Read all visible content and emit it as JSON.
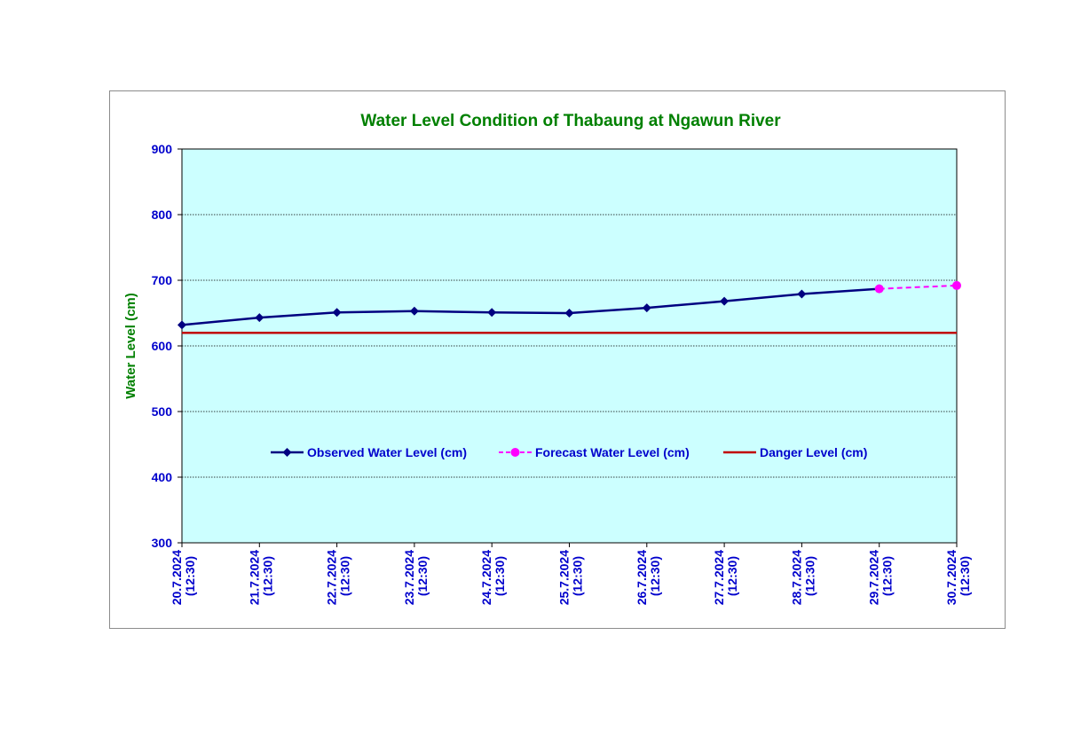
{
  "colors": {
    "plot_bg": "#ccffff",
    "observed": "#000080",
    "forecast": "#ff00ff",
    "danger": "#c00000",
    "title": "#008000",
    "axis_text": "#0000cc",
    "ylabel": "#008000",
    "grid": "#000000"
  },
  "chart_data": {
    "type": "line",
    "title": "Water Level Condition of Thabaung at Ngawun River",
    "xlabel": "",
    "ylabel": "Water Level (cm)",
    "ylim": [
      300,
      900
    ],
    "yticks": [
      300,
      400,
      500,
      600,
      700,
      800,
      900
    ],
    "grid": "horizontal dotted",
    "legend_position": "center",
    "categories": [
      [
        "20.7.2024",
        "(12:30)"
      ],
      [
        "21.7.2024",
        "(12:30)"
      ],
      [
        "22.7.2024",
        "(12:30)"
      ],
      [
        "23.7.2024",
        "(12:30)"
      ],
      [
        "24.7.2024",
        "(12:30)"
      ],
      [
        "25.7.2024",
        "(12:30)"
      ],
      [
        "26.7.2024",
        "(12:30)"
      ],
      [
        "27.7.2024",
        "(12:30)"
      ],
      [
        "28.7.2024",
        "(12:30)"
      ],
      [
        "29.7.2024",
        "(12:30)"
      ],
      [
        "30.7.2024",
        "(12:30)"
      ]
    ],
    "series": [
      {
        "name": "Observed Water Level (cm)",
        "style": "solid line, diamond markers",
        "values": [
          632,
          643,
          651,
          653,
          651,
          650,
          658,
          668,
          679,
          687,
          null
        ]
      },
      {
        "name": "Forecast Water Level (cm)",
        "style": "dashed line, circle markers",
        "values": [
          null,
          null,
          null,
          null,
          null,
          null,
          null,
          null,
          null,
          687,
          692
        ]
      },
      {
        "name": "Danger Level (cm)",
        "style": "solid line, no markers",
        "values": [
          620,
          620,
          620,
          620,
          620,
          620,
          620,
          620,
          620,
          620,
          620
        ]
      }
    ]
  }
}
